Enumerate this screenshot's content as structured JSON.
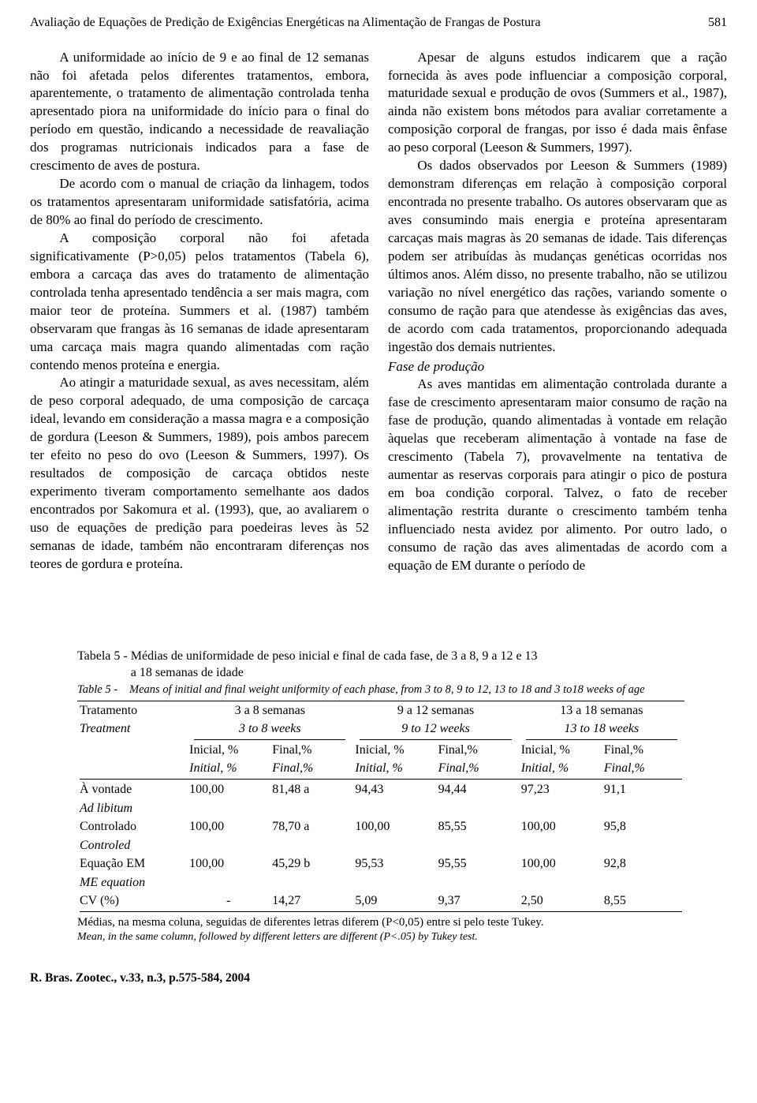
{
  "header": {
    "running_title": "Avaliação de Equações de Predição de Exigências Energéticas na Alimentação de Frangas de Postura",
    "page_number": "581"
  },
  "left_column": {
    "p1": "A uniformidade ao início de 9 e ao final de 12 semanas não foi afetada pelos diferentes tratamentos, embora, aparentemente, o tratamento de alimentação controlada tenha apresentado piora na uniformidade do início para o final do período em questão, indicando a necessidade de reavaliação dos programas nutricionais indicados para a fase de crescimento de aves de postura.",
    "p2": "De acordo com o manual de criação da linhagem, todos os tratamentos apresentaram uniformidade satisfatória, acima de 80% ao final do período de crescimento.",
    "p3": "A composição corporal não foi afetada significativamente (P>0,05) pelos tratamentos (Tabela 6), embora a carcaça das aves do tratamento de alimentação controlada tenha apresentado tendência a ser mais magra, com maior teor de proteína. Summers et al. (1987) também observaram que frangas às 16 semanas de idade apresentaram uma carcaça mais magra quando alimentadas com ração contendo menos proteína e energia.",
    "p4": "Ao atingir a maturidade sexual, as aves necessitam, além de peso corporal adequado, de uma composição de carcaça ideal, levando em consideração a massa magra e a composição de gordura (Leeson & Summers, 1989), pois ambos parecem ter efeito no peso do ovo (Leeson & Summers, 1997). Os resultados de composição de carcaça obtidos neste experimento tiveram comportamento semelhante aos dados encontrados por Sakomura et al. (1993), que, ao avaliarem o uso de equações de predição para poedeiras leves às 52 semanas de idade, também não encontraram diferenças nos teores de gordura e proteína."
  },
  "right_column": {
    "p1": "Apesar de alguns estudos indicarem que a ração fornecida às aves pode influenciar a composição corporal, maturidade sexual e produção de ovos (Summers et al., 1987), ainda não existem bons métodos para avaliar corretamente a composição corporal de frangas, por isso é dada mais ênfase ao peso corporal (Leeson & Summers, 1997).",
    "p2": "Os dados observados por Leeson & Summers (1989) demonstram diferenças em relação à composição corporal encontrada no presente trabalho. Os autores observaram que as aves consumindo mais energia e proteína apresentaram carcaças mais magras às 20 semanas de idade. Tais diferenças podem ser atribuídas às mudanças genéticas ocorridas nos últimos anos. Além disso, no presente trabalho, não se utilizou variação no nível energético das rações, variando somente o consumo de ração para que atendesse às exigências das aves, de acordo com cada tratamentos, proporcionando adequada ingestão dos demais nutrientes.",
    "section_heading": "Fase de produção",
    "p3": "As aves mantidas em alimentação controlada durante a fase de crescimento apresentaram maior consumo de ração na fase de produção, quando alimentadas à vontade em relação àquelas que receberam alimentação à vontade na fase de crescimento (Tabela 7), provavelmente na tentativa de aumentar as reservas corporais para atingir o pico de postura em boa condição corporal. Talvez, o fato de receber alimentação restrita durante o crescimento também tenha influenciado nesta avidez por alimento. Por outro lado, o consumo de ração das aves alimentadas de acordo com a equação de EM durante o período de"
  },
  "table": {
    "caption_pt_label": "Tabela 5 -",
    "caption_pt_line1": "Médias de uniformidade de peso inicial e final de cada fase, de 3 a 8, 9 a 12 e 13",
    "caption_pt_line2": "a 18 semanas de idade",
    "caption_en_label": "Table  5  -",
    "caption_en_line1": "Means of initial and final weight uniformity of each phase, from 3 to 8, 9 to 12, 13 to 18 and",
    "caption_en_line2": "3 to18 weeks of age",
    "headers": {
      "treatment_pt": "Tratamento",
      "treatment_en": "Treatment",
      "phase1_pt": "3 a 8 semanas",
      "phase1_en": "3 to 8 weeks",
      "phase2_pt": "9 a 12 semanas",
      "phase2_en": "9 to 12 weeks",
      "phase3_pt": "13 a 18 semanas",
      "phase3_en": "13 to 18 weeks",
      "initial_pt": "Inicial, %",
      "initial_en": "Initial, %",
      "final_pt": "Final,%",
      "final_en": "Final,%"
    },
    "rows": [
      {
        "label_pt": "À vontade",
        "label_en": "Ad libitum",
        "v": [
          "100,00",
          "81,48 a",
          "94,43",
          "94,44",
          "97,23",
          "91,1"
        ]
      },
      {
        "label_pt": "Controlado",
        "label_en": "Controled",
        "v": [
          "100,00",
          "78,70 a",
          "100,00",
          "85,55",
          "100,00",
          "95,8"
        ]
      },
      {
        "label_pt": "Equação EM",
        "label_en": "ME equation",
        "v": [
          "100,00",
          "45,29 b",
          "95,53",
          "95,55",
          "100,00",
          "92,8"
        ]
      },
      {
        "label_pt": "CV (%)",
        "label_en": "",
        "v": [
          "-",
          "14,27",
          "5,09",
          "9,37",
          "2,50",
          "8,55"
        ]
      }
    ],
    "footnote_pt": "Médias, na mesma coluna, seguidas de diferentes letras diferem (P<0,05) entre si pelo teste Tukey.",
    "footnote_en": "Mean, in the same column, followed by different letters are different (P<.05) by Tukey test."
  },
  "footer": "R. Bras. Zootec., v.33, n.3, p.575-584, 2004"
}
